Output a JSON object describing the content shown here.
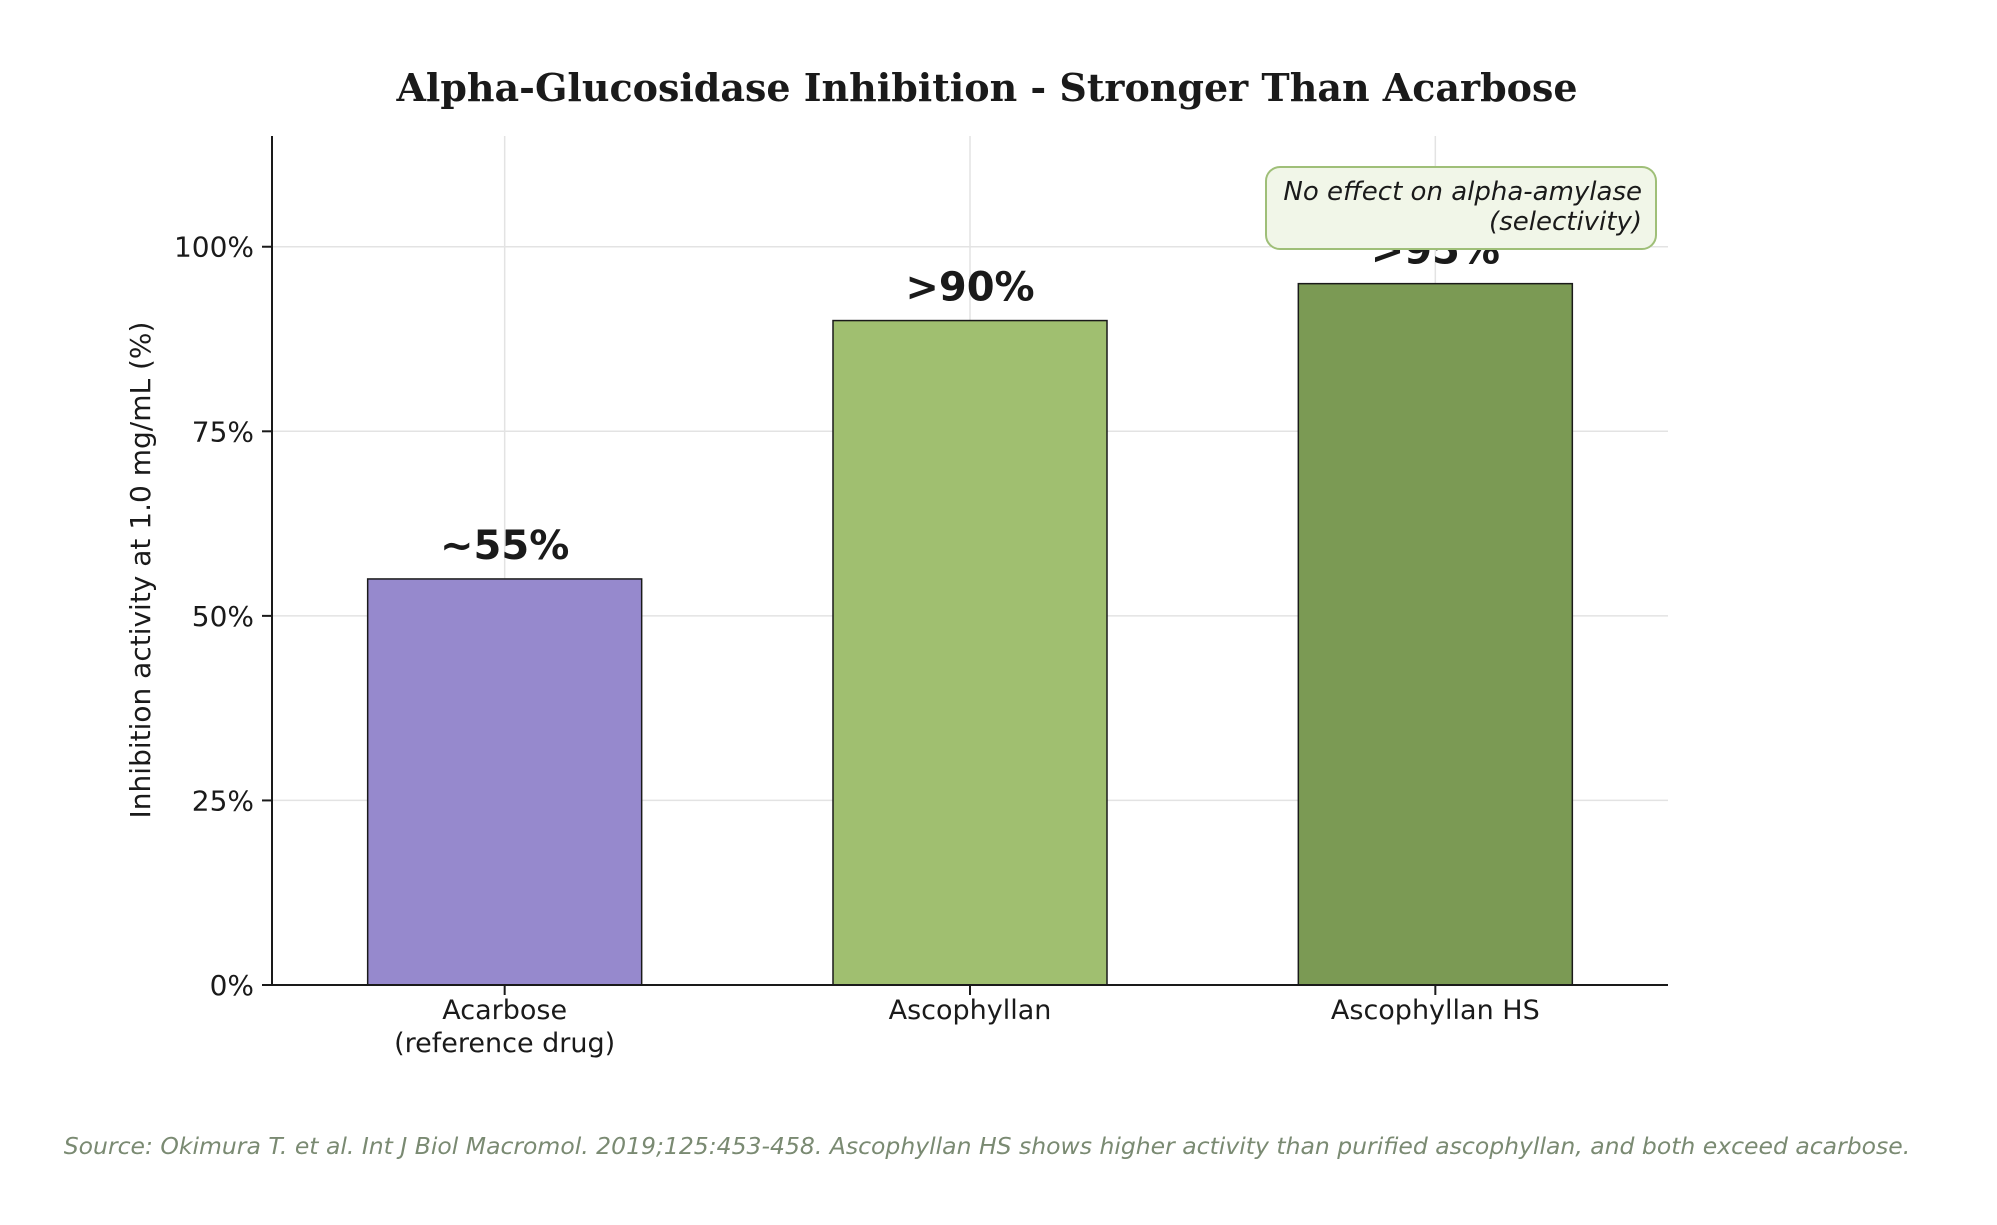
{
  "chart_data": {
    "type": "bar",
    "title": "Alpha-Glucosidase Inhibition - Stronger Than Acarbose",
    "ylabel": "Inhibition activity at 1.0 mg/mL (%)",
    "xlabel": "",
    "ylim": [
      0,
      115
    ],
    "yticks": [
      0,
      25,
      50,
      75,
      100
    ],
    "ytick_labels": [
      "0%",
      "25%",
      "50%",
      "75%",
      "100%"
    ],
    "grid": true,
    "categories": [
      [
        "Acarbose",
        "(reference drug)"
      ],
      [
        "Ascophyllan"
      ],
      [
        "Ascophyllan HS"
      ]
    ],
    "values": [
      55,
      90,
      95
    ],
    "data_labels": [
      "~55%",
      ">90%",
      ">95%"
    ],
    "colors": [
      "#9689cd",
      "#a0bf70",
      "#7b9a54"
    ],
    "annotation": {
      "lines": [
        "No effect on alpha-amylase",
        "(selectivity)"
      ],
      "placement": "top-right",
      "fill": "#f1f6e8",
      "border": "#9fbf78"
    },
    "source_note": "Source: Okimura T. et al. Int J Biol Macromol. 2019;125:453-458. Ascophyllan HS shows higher activity than purified ascophyllan, and both exceed acarbose.",
    "source_color": "#7a8a72"
  }
}
